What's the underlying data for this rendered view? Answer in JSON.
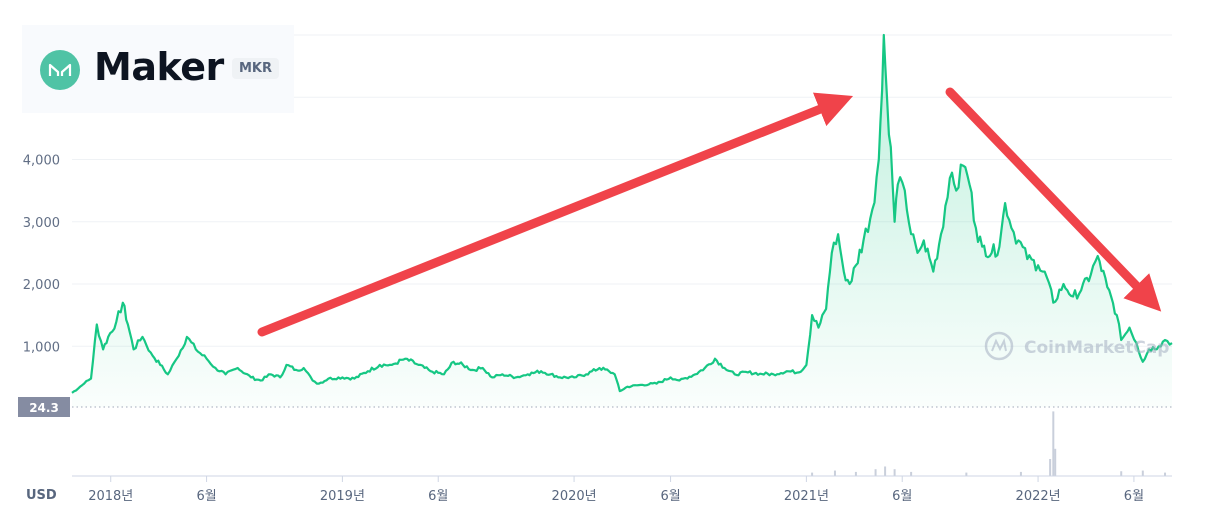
{
  "header": {
    "coin_name": "Maker",
    "coin_symbol": "MKR"
  },
  "watermark": "CoinMarketCap",
  "unit_label": "USD",
  "price_badge": "24.3",
  "colors": {
    "line": "#16c784",
    "arrow": "#f0434a",
    "grid": "#eff2f5",
    "logo": "#4fc3a5"
  },
  "chart_data": {
    "type": "area",
    "title": "",
    "xlabel": "",
    "ylabel": "",
    "ylim": [
      24.3,
      6000
    ],
    "yticks": [
      {
        "value": 1000,
        "label": "1,000"
      },
      {
        "value": 2000,
        "label": "2,000"
      },
      {
        "value": 3000,
        "label": "3,000"
      },
      {
        "value": 4000,
        "label": "4,000"
      }
    ],
    "xticks": [
      {
        "date": "2018-01-01",
        "label": "2018년"
      },
      {
        "date": "2018-06-01",
        "label": "6월"
      },
      {
        "date": "2019-01-01",
        "label": "2019년"
      },
      {
        "date": "2019-06-01",
        "label": "6월"
      },
      {
        "date": "2020-01-01",
        "label": "2020년"
      },
      {
        "date": "2020-06-01",
        "label": "6월"
      },
      {
        "date": "2021-01-01",
        "label": "2021년"
      },
      {
        "date": "2021-06-01",
        "label": "6월"
      },
      {
        "date": "2022-01-01",
        "label": "2022년"
      },
      {
        "date": "2022-06-01",
        "label": "6월"
      }
    ],
    "series": [
      {
        "points": [
          [
            "2017-11-01",
            250
          ],
          [
            "2017-11-20",
            400
          ],
          [
            "2017-12-01",
            480
          ],
          [
            "2017-12-10",
            1350
          ],
          [
            "2017-12-20",
            950
          ],
          [
            "2017-12-28",
            1150
          ],
          [
            "2018-01-10",
            1400
          ],
          [
            "2018-01-20",
            1700
          ],
          [
            "2018-01-28",
            1350
          ],
          [
            "2018-02-06",
            950
          ],
          [
            "2018-02-20",
            1150
          ],
          [
            "2018-03-05",
            900
          ],
          [
            "2018-03-20",
            700
          ],
          [
            "2018-04-01",
            550
          ],
          [
            "2018-04-15",
            800
          ],
          [
            "2018-05-01",
            1150
          ],
          [
            "2018-05-15",
            950
          ],
          [
            "2018-06-01",
            800
          ],
          [
            "2018-06-15",
            650
          ],
          [
            "2018-07-01",
            550
          ],
          [
            "2018-07-20",
            650
          ],
          [
            "2018-08-10",
            500
          ],
          [
            "2018-08-25",
            450
          ],
          [
            "2018-09-10",
            550
          ],
          [
            "2018-09-25",
            500
          ],
          [
            "2018-10-05",
            700
          ],
          [
            "2018-10-20",
            620
          ],
          [
            "2018-11-01",
            650
          ],
          [
            "2018-11-15",
            450
          ],
          [
            "2018-11-25",
            400
          ],
          [
            "2018-12-10",
            480
          ],
          [
            "2019-01-01",
            500
          ],
          [
            "2019-01-20",
            480
          ],
          [
            "2019-02-10",
            600
          ],
          [
            "2019-03-01",
            700
          ],
          [
            "2019-03-20",
            700
          ],
          [
            "2019-04-10",
            800
          ],
          [
            "2019-05-01",
            700
          ],
          [
            "2019-05-20",
            600
          ],
          [
            "2019-06-10",
            550
          ],
          [
            "2019-06-25",
            750
          ],
          [
            "2019-07-10",
            700
          ],
          [
            "2019-07-25",
            620
          ],
          [
            "2019-08-10",
            650
          ],
          [
            "2019-08-25",
            500
          ],
          [
            "2019-09-10",
            550
          ],
          [
            "2019-10-01",
            500
          ],
          [
            "2019-10-20",
            550
          ],
          [
            "2019-11-10",
            600
          ],
          [
            "2019-11-25",
            550
          ],
          [
            "2019-12-10",
            500
          ],
          [
            "2020-01-01",
            500
          ],
          [
            "2020-01-20",
            550
          ],
          [
            "2020-02-10",
            650
          ],
          [
            "2020-02-25",
            600
          ],
          [
            "2020-03-05",
            550
          ],
          [
            "2020-03-13",
            280
          ],
          [
            "2020-03-25",
            350
          ],
          [
            "2020-04-15",
            380
          ],
          [
            "2020-05-10",
            400
          ],
          [
            "2020-06-01",
            500
          ],
          [
            "2020-06-15",
            450
          ],
          [
            "2020-07-10",
            550
          ],
          [
            "2020-07-25",
            650
          ],
          [
            "2020-08-10",
            800
          ],
          [
            "2020-08-25",
            650
          ],
          [
            "2020-09-10",
            550
          ],
          [
            "2020-10-01",
            580
          ],
          [
            "2020-10-20",
            560
          ],
          [
            "2020-11-10",
            550
          ],
          [
            "2020-12-01",
            600
          ],
          [
            "2020-12-20",
            580
          ],
          [
            "2021-01-01",
            700
          ],
          [
            "2021-01-10",
            1500
          ],
          [
            "2021-01-20",
            1300
          ],
          [
            "2021-02-01",
            1600
          ],
          [
            "2021-02-10",
            2500
          ],
          [
            "2021-02-20",
            2800
          ],
          [
            "2021-03-01",
            2200
          ],
          [
            "2021-03-10",
            2000
          ],
          [
            "2021-03-20",
            2300
          ],
          [
            "2021-04-01",
            2700
          ],
          [
            "2021-04-15",
            3200
          ],
          [
            "2021-04-25",
            4000
          ],
          [
            "2021-05-03",
            6000
          ],
          [
            "2021-05-08",
            5000
          ],
          [
            "2021-05-14",
            4200
          ],
          [
            "2021-05-20",
            3000
          ],
          [
            "2021-05-25",
            3600
          ],
          [
            "2021-06-05",
            3500
          ],
          [
            "2021-06-15",
            2800
          ],
          [
            "2021-06-25",
            2500
          ],
          [
            "2021-07-05",
            2700
          ],
          [
            "2021-07-20",
            2200
          ],
          [
            "2021-08-01",
            2800
          ],
          [
            "2021-08-15",
            3700
          ],
          [
            "2021-08-25",
            3500
          ],
          [
            "2021-09-05",
            3900
          ],
          [
            "2021-09-15",
            3600
          ],
          [
            "2021-09-25",
            2900
          ],
          [
            "2021-10-05",
            2600
          ],
          [
            "2021-10-20",
            2500
          ],
          [
            "2021-11-01",
            2600
          ],
          [
            "2021-11-10",
            3300
          ],
          [
            "2021-11-20",
            2900
          ],
          [
            "2021-12-01",
            2700
          ],
          [
            "2021-12-15",
            2400
          ],
          [
            "2022-01-01",
            2300
          ],
          [
            "2022-01-15",
            2100
          ],
          [
            "2022-01-25",
            1700
          ],
          [
            "2022-02-10",
            2000
          ],
          [
            "2022-02-25",
            1800
          ],
          [
            "2022-03-10",
            1900
          ],
          [
            "2022-03-25",
            2150
          ],
          [
            "2022-04-05",
            2450
          ],
          [
            "2022-04-20",
            1950
          ],
          [
            "2022-05-05",
            1500
          ],
          [
            "2022-05-12",
            1100
          ],
          [
            "2022-05-25",
            1300
          ],
          [
            "2022-06-05",
            1050
          ],
          [
            "2022-06-15",
            750
          ],
          [
            "2022-06-25",
            950
          ],
          [
            "2022-07-10",
            1000
          ],
          [
            "2022-07-20",
            1100
          ],
          [
            "2022-07-31",
            1050
          ]
        ]
      }
    ],
    "volume": {
      "ylim": [
        0,
        1
      ],
      "points": [
        [
          "2021-01-10",
          0.05
        ],
        [
          "2021-02-15",
          0.08
        ],
        [
          "2021-03-20",
          0.06
        ],
        [
          "2021-04-20",
          0.1
        ],
        [
          "2021-05-05",
          0.14
        ],
        [
          "2021-05-20",
          0.1
        ],
        [
          "2021-06-15",
          0.06
        ],
        [
          "2021-09-10",
          0.05
        ],
        [
          "2021-12-05",
          0.06
        ],
        [
          "2022-01-20",
          0.25
        ],
        [
          "2022-01-25",
          0.95
        ],
        [
          "2022-01-28",
          0.4
        ],
        [
          "2022-05-12",
          0.07
        ],
        [
          "2022-06-15",
          0.08
        ],
        [
          "2022-07-20",
          0.05
        ]
      ]
    }
  }
}
